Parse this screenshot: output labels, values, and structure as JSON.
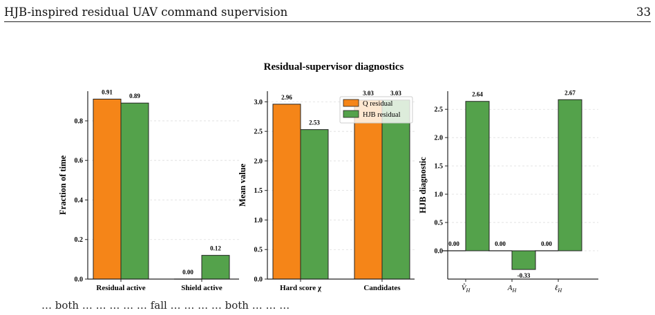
{
  "header": {
    "running_title": "HJB-inspired residual UAV command supervision",
    "page_number": "33"
  },
  "caption_fragment": "… both … … … … … fall … … … … both … … …",
  "colors": {
    "q_residual": "#f58518",
    "hjb_residual": "#54a24b",
    "edge": "#222222"
  },
  "figure_title": "Residual-supervisor diagnostics",
  "legend": [
    "Q residual",
    "HJB residual"
  ],
  "chart_data": [
    {
      "type": "bar",
      "title": "",
      "ylabel": "Fraction of time",
      "xlabel": "",
      "categories": [
        "Residual active",
        "Shield active"
      ],
      "series": [
        {
          "name": "Q residual",
          "values": [
            0.91,
            0.0
          ]
        },
        {
          "name": "HJB residual",
          "values": [
            0.89,
            0.12
          ]
        }
      ],
      "value_labels": [
        [
          "0.91",
          "0.00"
        ],
        [
          "0.89",
          "0.12"
        ]
      ],
      "ylim": [
        0,
        0.95
      ],
      "yticks": [
        0.0,
        0.2,
        0.4,
        0.6,
        0.8
      ],
      "ytick_labels": [
        "0.0",
        "0.2",
        "0.4",
        "0.6",
        "0.8"
      ],
      "grid": true
    },
    {
      "type": "bar",
      "title": "",
      "ylabel": "Mean value",
      "xlabel": "",
      "categories": [
        "Hard score χ",
        "Candidates"
      ],
      "series": [
        {
          "name": "Q residual",
          "values": [
            2.96,
            3.03
          ]
        },
        {
          "name": "HJB residual",
          "values": [
            2.53,
            3.03
          ]
        }
      ],
      "value_labels": [
        [
          "2.96",
          "3.03"
        ],
        [
          "2.53",
          "3.03"
        ]
      ],
      "ylim": [
        0,
        3.18
      ],
      "yticks": [
        0.0,
        0.5,
        1.0,
        1.5,
        2.0,
        2.5,
        3.0
      ],
      "ytick_labels": [
        "0.0",
        "0.5",
        "1.0",
        "1.5",
        "2.0",
        "2.5",
        "3.0"
      ],
      "grid": true,
      "legend_position": "top-right"
    },
    {
      "type": "bar",
      "title": "",
      "ylabel": "HJB diagnostic",
      "xlabel": "",
      "categories": [
        "V̂_H",
        "A_H",
        "ℓ_H"
      ],
      "series": [
        {
          "name": "Q residual",
          "values": [
            0.0,
            0.0,
            0.0
          ]
        },
        {
          "name": "HJB residual",
          "values": [
            2.64,
            -0.33,
            2.67
          ]
        }
      ],
      "value_labels": [
        [
          "0.00",
          "0.00",
          "0.00"
        ],
        [
          "2.64",
          "-0.33",
          "2.67"
        ]
      ],
      "ylim": [
        -0.5,
        2.82
      ],
      "yticks": [
        0.0,
        0.5,
        1.0,
        1.5,
        2.0,
        2.5
      ],
      "ytick_labels": [
        "0.0",
        "0.5",
        "1.0",
        "1.5",
        "2.0",
        "2.5"
      ],
      "grid": true
    }
  ]
}
